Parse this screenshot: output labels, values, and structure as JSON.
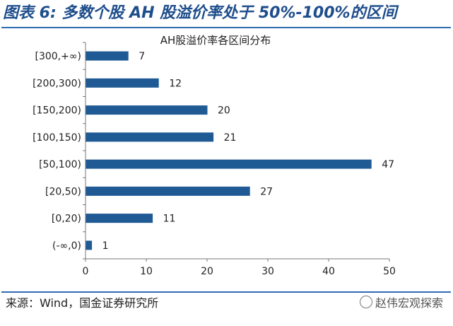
{
  "header": {
    "title": "图表 6:  多数个股 AH 股溢价率处于 50%-100%的区间"
  },
  "footer": {
    "source": "来源：Wind，国金证券研究所",
    "watermark": "赵伟宏观探索"
  },
  "colors": {
    "bar": "#1f5a94",
    "rule": "#2f6db3",
    "title": "#1f4e8c"
  },
  "chart_data": {
    "type": "bar",
    "orientation": "horizontal",
    "title": "AH股溢价率各区间分布",
    "categories": [
      "[300,+∞)",
      "[200,300)",
      "[150,200)",
      "[100,150)",
      "[50,100)",
      "[20,50)",
      "[0,20)",
      "(-∞,0)"
    ],
    "values": [
      7,
      12,
      20,
      21,
      47,
      27,
      11,
      1
    ],
    "xlim": [
      0,
      50
    ],
    "xticks": [
      0,
      10,
      20,
      30,
      40,
      50
    ],
    "xlabel": "",
    "ylabel": "",
    "grid": false,
    "legend": "none"
  }
}
